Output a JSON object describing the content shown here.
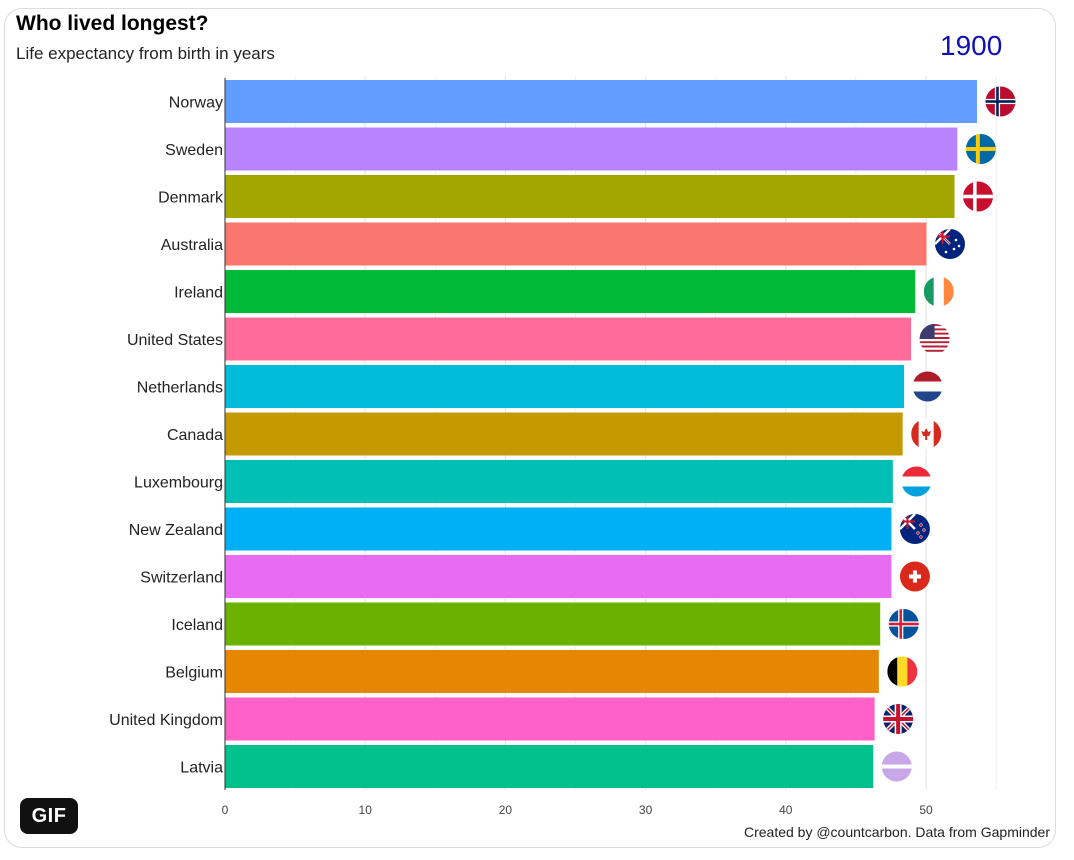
{
  "header": {
    "title": "Who lived longest?",
    "subtitle": "Life expectancy from birth in years",
    "year": "1900"
  },
  "footer": {
    "caption": "Created by @countcarbon. Data from Gapminder",
    "badge": "GIF"
  },
  "colors": {
    "year": "#1010b0",
    "grid": "#e6e6e6"
  },
  "chart_data": {
    "type": "bar",
    "orientation": "horizontal",
    "title": "Who lived longest?",
    "subtitle": "Life expectancy from birth in years",
    "xlabel": "",
    "ylabel": "",
    "xlim": [
      0,
      56
    ],
    "ticks": [
      0,
      10,
      20,
      30,
      40,
      50
    ],
    "categories": [
      "Norway",
      "Sweden",
      "Denmark",
      "Australia",
      "Ireland",
      "United States",
      "Netherlands",
      "Canada",
      "Luxembourg",
      "New Zealand",
      "Switzerland",
      "Iceland",
      "Belgium",
      "United Kingdom",
      "Latvia"
    ],
    "values": [
      53.6,
      52.2,
      52.0,
      50.0,
      49.2,
      48.9,
      48.4,
      48.3,
      47.6,
      47.5,
      47.5,
      46.7,
      46.6,
      46.3,
      46.2
    ],
    "bar_colors": [
      "#619cff",
      "#b983ff",
      "#a3a500",
      "#f8766d",
      "#00ba38",
      "#ff6c9c",
      "#00bcd8",
      "#c49a00",
      "#00bfb4",
      "#00b0f6",
      "#e76bf3",
      "#6bb100",
      "#e58700",
      "#ff61c9",
      "#00c08b"
    ],
    "flags": [
      "flag-norway-icon",
      "flag-sweden-icon",
      "flag-denmark-icon",
      "flag-australia-icon",
      "flag-ireland-icon",
      "flag-united-states-icon",
      "flag-netherlands-icon",
      "flag-canada-icon",
      "flag-luxembourg-icon",
      "flag-new-zealand-icon",
      "flag-switzerland-icon",
      "flag-iceland-icon",
      "flag-belgium-icon",
      "flag-united-kingdom-icon",
      "flag-latvia-icon"
    ],
    "grid": true
  }
}
